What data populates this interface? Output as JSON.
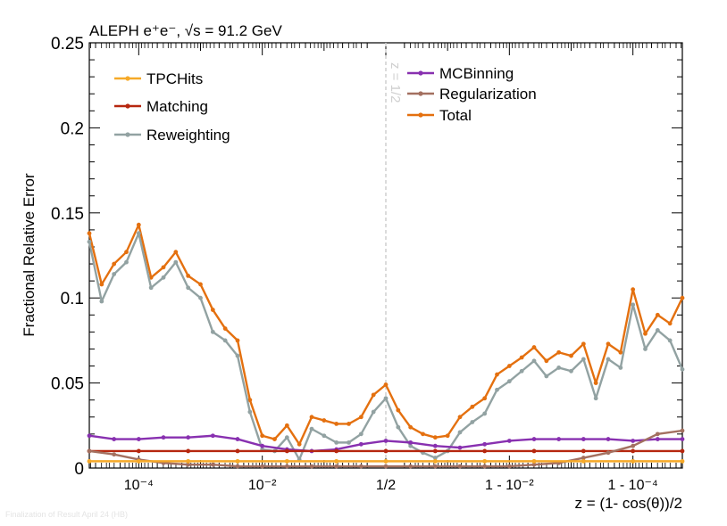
{
  "chart_data": {
    "type": "line",
    "title": "ALEPH e⁺e⁻, √s = 91.2 GeV",
    "xlabel": "z = (1- cos(θ))/2",
    "ylabel": "Fractional Relative Error",
    "ylim": [
      0,
      0.25
    ],
    "y_ticks": [
      "0",
      "0.05",
      "0.1",
      "0.15",
      "0.2",
      "0.25"
    ],
    "x_scale": "symmetric-log about z = 1/2 (axis unit = log10 distance from nearest endpoint)",
    "xlim_axis_units": [
      -4.8,
      4.8
    ],
    "x_ticks": [
      {
        "pos": -4,
        "label": "10⁻⁴"
      },
      {
        "pos": -2,
        "label": "10⁻²"
      },
      {
        "pos": 0,
        "label": "1/2"
      },
      {
        "pos": 2,
        "label": "1 - 10⁻²"
      },
      {
        "pos": 4,
        "label": "1 - 10⁻⁴"
      }
    ],
    "vline": {
      "pos": 0,
      "label": "z = 1/2",
      "color": "#cfcfcf"
    },
    "legend": [
      {
        "name": "TPCHits",
        "color": "#f6a928"
      },
      {
        "name": "Matching",
        "color": "#b6270f"
      },
      {
        "name": "Reweighting",
        "color": "#92a2a2"
      },
      {
        "name": "MCBinning",
        "color": "#8830b0"
      },
      {
        "name": "Regularization",
        "color": "#a37060"
      },
      {
        "name": "Total",
        "color": "#e4700f"
      }
    ],
    "series": [
      {
        "name": "Total",
        "color": "#e4700f",
        "x": [
          -4.8,
          -4.6,
          -4.4,
          -4.2,
          -4.0,
          -3.8,
          -3.6,
          -3.4,
          -3.2,
          -3.0,
          -2.8,
          -2.6,
          -2.4,
          -2.2,
          -2.0,
          -1.8,
          -1.6,
          -1.4,
          -1.2,
          -1.0,
          -0.8,
          -0.6,
          -0.4,
          -0.2,
          0.0,
          0.2,
          0.4,
          0.6,
          0.8,
          1.0,
          1.2,
          1.4,
          1.6,
          1.8,
          2.0,
          2.2,
          2.4,
          2.6,
          2.8,
          3.0,
          3.2,
          3.4,
          3.6,
          3.8,
          4.0,
          4.2,
          4.4,
          4.6,
          4.8
        ],
        "y": [
          0.138,
          0.108,
          0.12,
          0.127,
          0.143,
          0.112,
          0.118,
          0.127,
          0.113,
          0.108,
          0.093,
          0.082,
          0.075,
          0.04,
          0.019,
          0.017,
          0.025,
          0.014,
          0.03,
          0.028,
          0.026,
          0.026,
          0.03,
          0.043,
          0.049,
          0.034,
          0.024,
          0.02,
          0.018,
          0.019,
          0.03,
          0.036,
          0.041,
          0.055,
          0.06,
          0.065,
          0.071,
          0.063,
          0.068,
          0.066,
          0.073,
          0.05,
          0.073,
          0.068,
          0.105,
          0.079,
          0.09,
          0.085,
          0.1
        ]
      },
      {
        "name": "Reweighting",
        "color": "#92a2a2",
        "x": [
          -4.8,
          -4.6,
          -4.4,
          -4.2,
          -4.0,
          -3.8,
          -3.6,
          -3.4,
          -3.2,
          -3.0,
          -2.8,
          -2.6,
          -2.4,
          -2.2,
          -2.0,
          -1.8,
          -1.6,
          -1.4,
          -1.2,
          -1.0,
          -0.8,
          -0.6,
          -0.4,
          -0.2,
          0.0,
          0.2,
          0.4,
          0.6,
          0.8,
          1.0,
          1.2,
          1.4,
          1.6,
          1.8,
          2.0,
          2.2,
          2.4,
          2.6,
          2.8,
          3.0,
          3.2,
          3.4,
          3.6,
          3.8,
          4.0,
          4.2,
          4.4,
          4.6,
          4.8
        ],
        "y": [
          0.133,
          0.098,
          0.114,
          0.121,
          0.138,
          0.106,
          0.112,
          0.121,
          0.106,
          0.1,
          0.08,
          0.075,
          0.066,
          0.033,
          0.011,
          0.01,
          0.018,
          0.005,
          0.023,
          0.019,
          0.015,
          0.015,
          0.02,
          0.033,
          0.041,
          0.024,
          0.013,
          0.009,
          0.006,
          0.01,
          0.021,
          0.027,
          0.032,
          0.046,
          0.051,
          0.057,
          0.063,
          0.054,
          0.059,
          0.057,
          0.064,
          0.041,
          0.064,
          0.059,
          0.096,
          0.07,
          0.081,
          0.075,
          0.058
        ]
      },
      {
        "name": "MCBinning",
        "color": "#8830b0",
        "x": [
          -4.8,
          -4.4,
          -4.0,
          -3.6,
          -3.2,
          -2.8,
          -2.4,
          -2.0,
          -1.6,
          -1.2,
          -0.8,
          -0.4,
          0.0,
          0.4,
          0.8,
          1.2,
          1.6,
          2.0,
          2.4,
          2.8,
          3.2,
          3.6,
          4.0,
          4.4,
          4.8
        ],
        "y": [
          0.019,
          0.017,
          0.017,
          0.018,
          0.018,
          0.019,
          0.017,
          0.013,
          0.011,
          0.01,
          0.011,
          0.014,
          0.016,
          0.015,
          0.013,
          0.012,
          0.014,
          0.016,
          0.017,
          0.017,
          0.017,
          0.017,
          0.016,
          0.017,
          0.017
        ]
      },
      {
        "name": "Matching",
        "color": "#b6270f",
        "x": [
          -4.8,
          -4.0,
          -3.2,
          -2.4,
          -1.6,
          -0.8,
          0.0,
          0.8,
          1.6,
          2.4,
          3.2,
          4.0,
          4.8
        ],
        "y": [
          0.01,
          0.01,
          0.01,
          0.01,
          0.01,
          0.01,
          0.01,
          0.01,
          0.01,
          0.01,
          0.01,
          0.01,
          0.01
        ]
      },
      {
        "name": "Regularization",
        "color": "#a37060",
        "x": [
          -4.8,
          -4.4,
          -4.0,
          -3.6,
          -3.2,
          -2.8,
          -2.4,
          -2.0,
          -1.6,
          -1.2,
          -0.8,
          -0.4,
          0.0,
          0.4,
          0.8,
          1.2,
          1.6,
          2.0,
          2.4,
          2.8,
          3.2,
          3.6,
          4.0,
          4.4,
          4.8
        ],
        "y": [
          0.01,
          0.008,
          0.005,
          0.003,
          0.002,
          0.002,
          0.001,
          0.001,
          0.001,
          0.001,
          0.001,
          0.001,
          0.001,
          0.001,
          0.001,
          0.001,
          0.001,
          0.001,
          0.002,
          0.003,
          0.006,
          0.009,
          0.013,
          0.02,
          0.022
        ]
      },
      {
        "name": "TPCHits",
        "color": "#f6a928",
        "x": [
          -4.8,
          -4.0,
          -3.2,
          -2.4,
          -1.6,
          -0.8,
          0.0,
          0.8,
          1.6,
          2.4,
          3.2,
          4.0,
          4.8
        ],
        "y": [
          0.004,
          0.004,
          0.004,
          0.004,
          0.004,
          0.004,
          0.004,
          0.004,
          0.004,
          0.004,
          0.004,
          0.004,
          0.004
        ]
      }
    ]
  },
  "footnote": "Finalization of Result April 24 (HB)"
}
